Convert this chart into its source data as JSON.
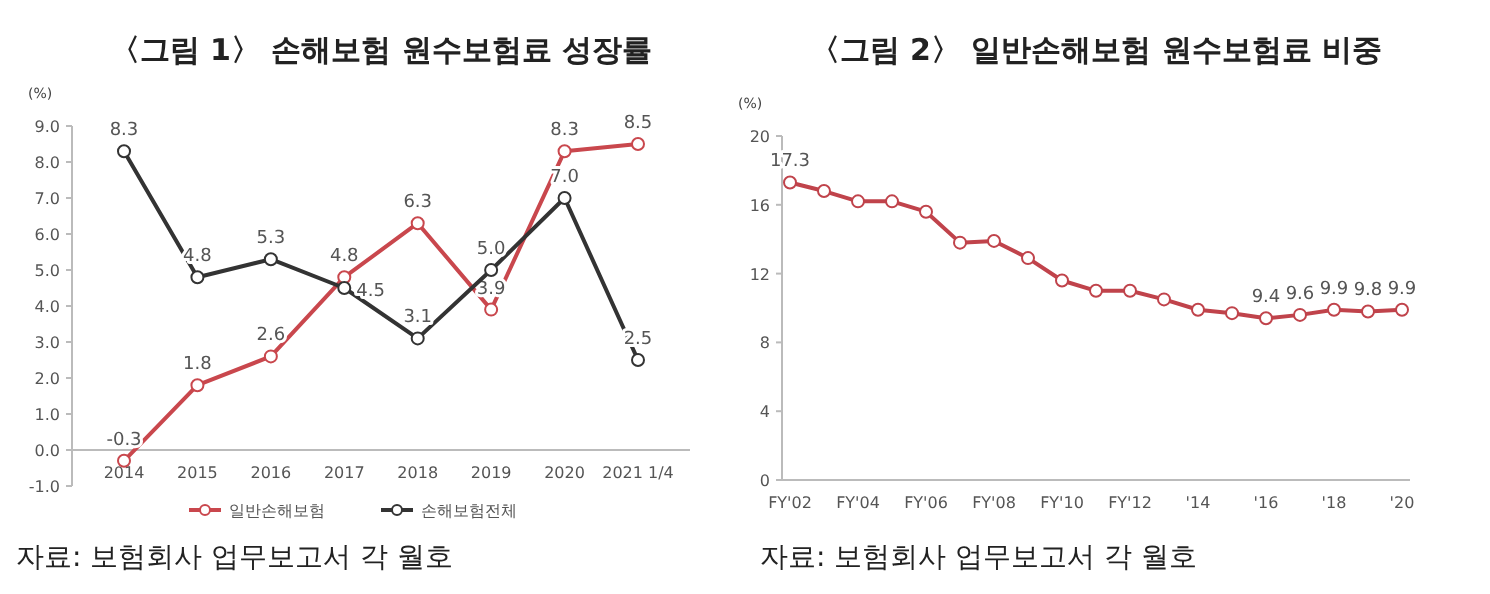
{
  "chart_data": [
    {
      "type": "line",
      "title": "〈그림 1〉 손해보험 원수보험료 성장률",
      "ylabel": "(%)",
      "categories": [
        "2014",
        "2015",
        "2016",
        "2017",
        "2018",
        "2019",
        "2020",
        "2021 1/4"
      ],
      "series": [
        {
          "name": "일반손해보험",
          "color": "#c9474d",
          "values": [
            -0.3,
            1.8,
            2.6,
            4.8,
            6.3,
            3.9,
            8.3,
            8.5
          ],
          "value_labels": [
            "-0.3",
            "1.8",
            "2.6",
            "4.8",
            "6.3",
            "3.9",
            "8.3",
            "8.5"
          ]
        },
        {
          "name": "손해보험전체",
          "color": "#333333",
          "values": [
            8.3,
            4.8,
            5.3,
            4.5,
            3.1,
            5.0,
            7.0,
            2.5
          ],
          "value_labels": [
            "8.3",
            "4.8",
            "5.3",
            "4.5",
            "3.1",
            "5.0",
            "7.0",
            "2.5"
          ]
        }
      ],
      "ylim": [
        -1,
        9
      ],
      "yticks": [
        {
          "value": -1,
          "label": "-1.0"
        },
        {
          "value": 0,
          "label": "0.0"
        },
        {
          "value": 1,
          "label": "1.0"
        },
        {
          "value": 2,
          "label": "2.0"
        },
        {
          "value": 3,
          "label": "3.0"
        },
        {
          "value": 4,
          "label": "4.0"
        },
        {
          "value": 5,
          "label": "5.0"
        },
        {
          "value": 6,
          "label": "6.0"
        },
        {
          "value": 7,
          "label": "7.0"
        },
        {
          "value": 8,
          "label": "8.0"
        },
        {
          "value": 9,
          "label": "9.0"
        }
      ],
      "legend": "bottom",
      "marker": "circle",
      "annotations": [
        "자료: 보험회사 업무보고서 각 월호"
      ]
    },
    {
      "type": "line",
      "title": "〈그림 2〉 일반손해보험 원수보험료 비중",
      "ylabel": "(%)",
      "categories": [
        "FY'02",
        null,
        "FY'04",
        null,
        "FY'06",
        null,
        "FY'08",
        null,
        "FY'10",
        null,
        "FY'12",
        null,
        "'14",
        null,
        "'16",
        null,
        "'18",
        null,
        "'20"
      ],
      "series": [
        {
          "color": "#c0434b",
          "values": [
            17.3,
            16.8,
            16.2,
            16.2,
            15.6,
            13.8,
            13.9,
            12.9,
            11.6,
            11.0,
            11.0,
            10.5,
            9.9,
            9.7,
            9.4,
            9.6,
            9.9,
            9.8,
            9.9
          ],
          "value_labels": [
            "17.3",
            null,
            null,
            null,
            null,
            null,
            null,
            null,
            null,
            null,
            null,
            null,
            null,
            null,
            "9.4",
            "9.6",
            "9.9",
            "9.8",
            "9.9"
          ]
        }
      ],
      "ylim": [
        0,
        20
      ],
      "yticks": [
        0,
        4,
        8,
        12,
        16,
        20
      ],
      "marker": "circle",
      "annotations": [
        "자료: 보험회사 업무보고서 각 월호"
      ]
    }
  ]
}
